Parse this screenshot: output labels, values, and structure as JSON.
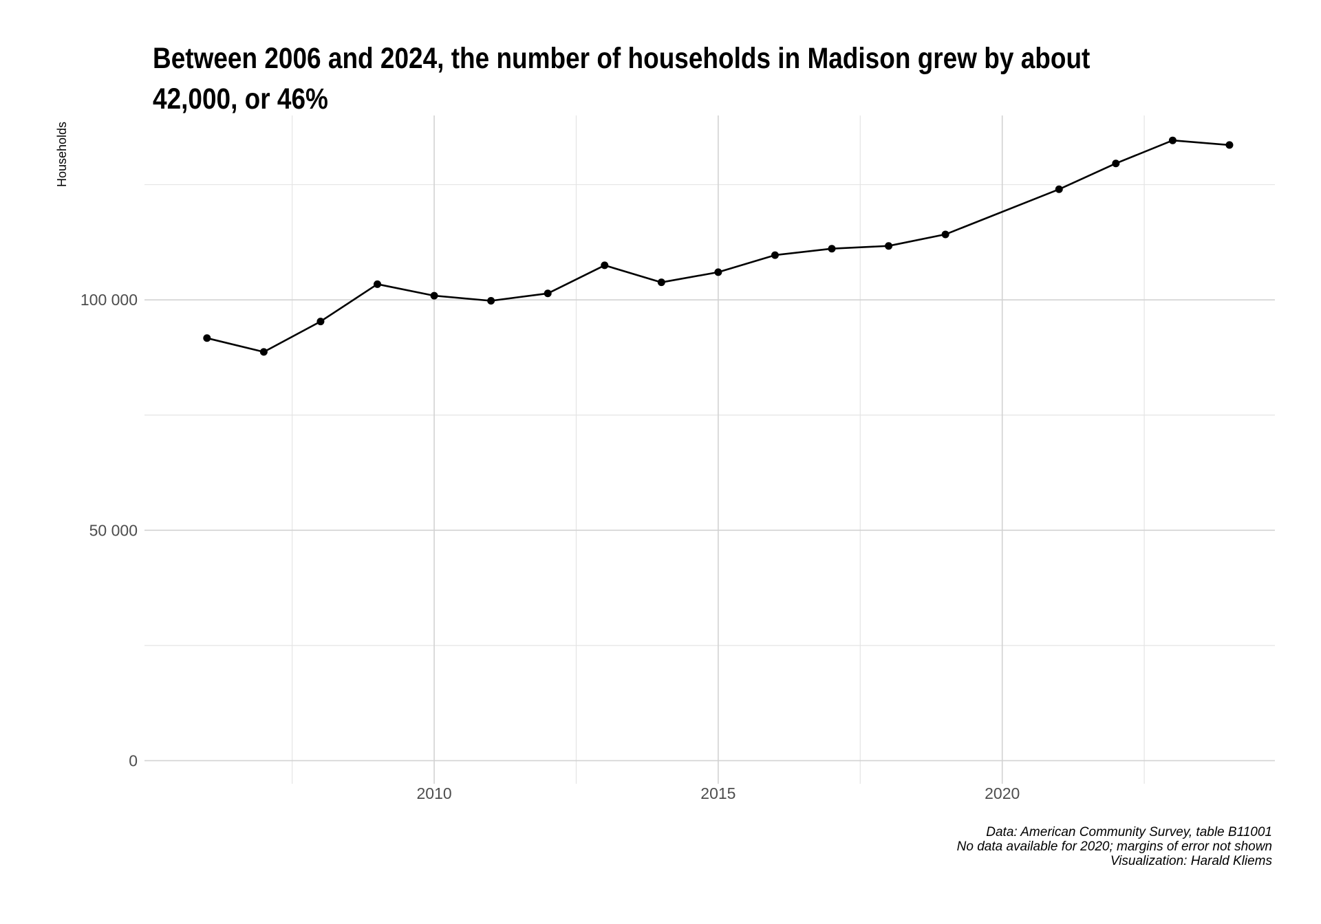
{
  "chart_data": {
    "type": "line",
    "title": "Between 2006 and 2024, the number of households in Madison grew by about 42,000, or 46%",
    "ylabel": "Households",
    "xlabel": "",
    "x_ticks": [
      "2010",
      "2015",
      "2020"
    ],
    "y_ticks": [
      "0",
      "50 000",
      "100 000"
    ],
    "xlim": [
      2004.9,
      2024.8
    ],
    "ylim": [
      -5000,
      140000
    ],
    "grid": true,
    "series": [
      {
        "x": [
          2006,
          2007,
          2008,
          2009,
          2010,
          2011,
          2012,
          2013,
          2014,
          2015,
          2016,
          2017,
          2018,
          2019,
          2021,
          2022,
          2023,
          2024
        ],
        "values": [
          91700,
          88700,
          95300,
          103400,
          100900,
          99800,
          101400,
          107500,
          103800,
          106000,
          109700,
          111100,
          111700,
          114200,
          124000,
          129600,
          134600,
          133600
        ]
      }
    ],
    "caption": [
      "Data: American Community Survey, table B11001",
      "No data available for 2020; margins of error not shown",
      "Visualization: Harald Kliems"
    ]
  }
}
